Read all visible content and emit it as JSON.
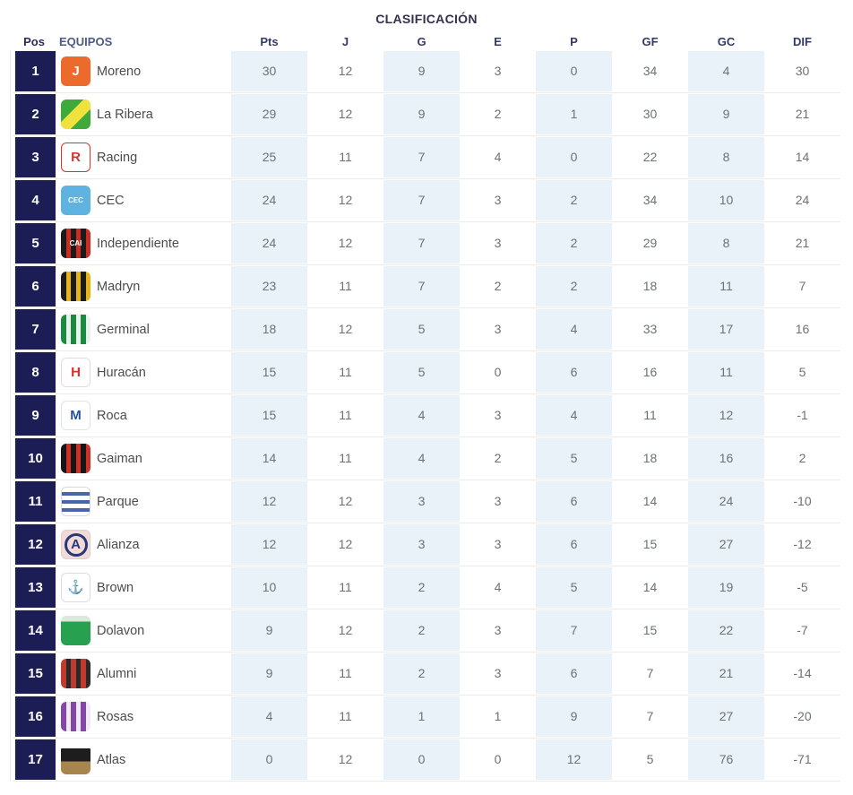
{
  "title": "CLASIFICACIÓN",
  "colors": {
    "position_box": "#1d1d55",
    "shaded_column": "#e9f2f9",
    "separator": "#ececec",
    "header_text": "#333a66",
    "value_text": "#6d7174",
    "team_text": "#4c4c4c",
    "title_text": "#32324e"
  },
  "table": {
    "headers": {
      "pos": "Pos",
      "team": "EQUIPOS",
      "pts": "Pts",
      "j": "J",
      "g": "G",
      "e": "E",
      "p": "P",
      "gf": "GF",
      "gc": "GC",
      "dif": "DIF"
    },
    "rows": [
      {
        "pos": 1,
        "team": "Moreno",
        "pts": 30,
        "j": 12,
        "g": 9,
        "e": 3,
        "p": 0,
        "gf": 34,
        "gc": 4,
        "dif": 30,
        "badge": {
          "pattern": "solid",
          "c1": "#ec6a2c",
          "fg": "#ffffff",
          "text": "J",
          "icon": "moreno-crest"
        }
      },
      {
        "pos": 2,
        "team": "La Ribera",
        "pts": 29,
        "j": 12,
        "g": 9,
        "e": 2,
        "p": 1,
        "gf": 30,
        "gc": 9,
        "dif": 21,
        "badge": {
          "pattern": "sash",
          "c1": "#3fa93c",
          "c2": "#efe23e",
          "fg": "#ffffff",
          "text": "",
          "icon": "la-ribera-crest"
        }
      },
      {
        "pos": 3,
        "team": "Racing",
        "pts": 25,
        "j": 11,
        "g": 7,
        "e": 4,
        "p": 0,
        "gf": 22,
        "gc": 8,
        "dif": 14,
        "badge": {
          "pattern": "plain",
          "c2": "#d2372f",
          "fg": "#d2372f",
          "text": "R",
          "icon": "racing-crest"
        }
      },
      {
        "pos": 4,
        "team": "CEC",
        "pts": 24,
        "j": 12,
        "g": 7,
        "e": 3,
        "p": 2,
        "gf": 34,
        "gc": 10,
        "dif": 24,
        "badge": {
          "pattern": "solid",
          "c1": "#5fb3e0",
          "fg": "#ffffff",
          "text": "CEC",
          "icon": "cec-crest"
        }
      },
      {
        "pos": 5,
        "team": "Independiente",
        "pts": 24,
        "j": 12,
        "g": 7,
        "e": 3,
        "p": 2,
        "gf": 29,
        "gc": 8,
        "dif": 21,
        "badge": {
          "pattern": "vstripes",
          "c1": "#1b1b1b",
          "c2": "#cd2c24",
          "fg": "#ffffff",
          "text": "CAI",
          "icon": "independiente-crest"
        }
      },
      {
        "pos": 6,
        "team": "Madryn",
        "pts": 23,
        "j": 11,
        "g": 7,
        "e": 2,
        "p": 2,
        "gf": 18,
        "gc": 11,
        "dif": 7,
        "badge": {
          "pattern": "vstripes",
          "c1": "#1c1c1c",
          "c2": "#e5b51a",
          "fg": "#ffffff",
          "text": "",
          "icon": "madryn-crest"
        }
      },
      {
        "pos": 7,
        "team": "Germinal",
        "pts": 18,
        "j": 12,
        "g": 5,
        "e": 3,
        "p": 4,
        "gf": 33,
        "gc": 17,
        "dif": 16,
        "badge": {
          "pattern": "vstripes",
          "c1": "#1a8a43",
          "c2": "#e8f3ea",
          "fg": "#ffffff",
          "text": "",
          "icon": "germinal-crest"
        }
      },
      {
        "pos": 8,
        "team": "Huracán",
        "pts": 15,
        "j": 11,
        "g": 5,
        "e": 0,
        "p": 6,
        "gf": 16,
        "gc": 11,
        "dif": 5,
        "badge": {
          "pattern": "plain",
          "c2": "#e8d9d8",
          "fg": "#d4332a",
          "text": "H",
          "icon": "huracan-crest"
        }
      },
      {
        "pos": 9,
        "team": "Roca",
        "pts": 15,
        "j": 11,
        "g": 4,
        "e": 3,
        "p": 4,
        "gf": 11,
        "gc": 12,
        "dif": -1,
        "badge": {
          "pattern": "plain",
          "c2": "#dfe3ee",
          "fg": "#23519f",
          "text": "M",
          "icon": "roca-crest"
        }
      },
      {
        "pos": 10,
        "team": "Gaiman",
        "pts": 14,
        "j": 11,
        "g": 4,
        "e": 2,
        "p": 5,
        "gf": 18,
        "gc": 16,
        "dif": 2,
        "badge": {
          "pattern": "vstripes",
          "c1": "#161616",
          "c2": "#cf3127",
          "fg": "#ffffff",
          "text": "",
          "icon": "gaiman-crest"
        }
      },
      {
        "pos": 11,
        "team": "Parque",
        "pts": 12,
        "j": 12,
        "g": 3,
        "e": 3,
        "p": 6,
        "gf": 14,
        "gc": 24,
        "dif": -10,
        "badge": {
          "pattern": "hstripes",
          "c1": "#ffffff",
          "c2": "#4966ad",
          "fg": "#2b3677",
          "text": "",
          "icon": "parque-crest"
        }
      },
      {
        "pos": 12,
        "team": "Alianza",
        "pts": 12,
        "j": 12,
        "g": 3,
        "e": 3,
        "p": 6,
        "gf": 15,
        "gc": 27,
        "dif": -12,
        "badge": {
          "pattern": "circle",
          "c1": "#f0dbd8",
          "fg": "#2b3677",
          "text": "A",
          "icon": "alianza-crest"
        }
      },
      {
        "pos": 13,
        "team": "Brown",
        "pts": 10,
        "j": 11,
        "g": 2,
        "e": 4,
        "p": 5,
        "gf": 14,
        "gc": 19,
        "dif": -5,
        "badge": {
          "pattern": "plain",
          "c2": "#dddddd",
          "fg": "#2e3d5c",
          "text": "⚓",
          "icon": "brown-crest"
        }
      },
      {
        "pos": 14,
        "team": "Dolavon",
        "pts": 9,
        "j": 12,
        "g": 2,
        "e": 3,
        "p": 7,
        "gf": 15,
        "gc": 22,
        "dif": -7,
        "badge": {
          "pattern": "bands",
          "c1": "#27a04f",
          "c2": "#dce8db",
          "fg": "#ffffff",
          "text": "",
          "icon": "dolavon-crest"
        }
      },
      {
        "pos": 15,
        "team": "Alumni",
        "pts": 9,
        "j": 11,
        "g": 2,
        "e": 3,
        "p": 6,
        "gf": 7,
        "gc": 21,
        "dif": -14,
        "badge": {
          "pattern": "vstripes",
          "c1": "#c03a2d",
          "c2": "#2a2a2a",
          "fg": "#ffffff",
          "text": "",
          "icon": "alumni-crest"
        }
      },
      {
        "pos": 16,
        "team": "Rosas",
        "pts": 4,
        "j": 11,
        "g": 1,
        "e": 1,
        "p": 9,
        "gf": 7,
        "gc": 27,
        "dif": -20,
        "badge": {
          "pattern": "vstripes",
          "c1": "#8348a5",
          "c2": "#f1e9f6",
          "fg": "#ffffff",
          "text": "",
          "icon": "rosas-crest"
        }
      },
      {
        "pos": 17,
        "team": "Atlas",
        "pts": 0,
        "j": 12,
        "g": 0,
        "e": 0,
        "p": 12,
        "gf": 5,
        "gc": 76,
        "dif": -71,
        "badge": {
          "pattern": "bands3",
          "c1": "#1d1d1d",
          "c2": "#a8844f",
          "fg": "#ffffff",
          "text": "",
          "icon": "atlas-crest"
        }
      }
    ]
  }
}
